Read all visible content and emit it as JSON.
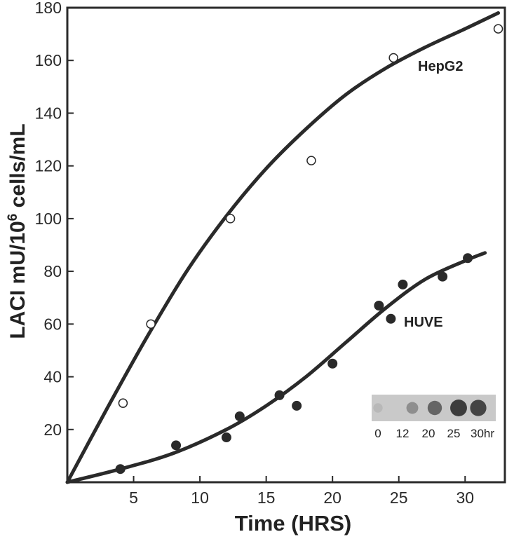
{
  "chart_data": {
    "type": "scatter",
    "title": "",
    "xlabel": "Time (HRS)",
    "ylabel_parts": {
      "pre": "LACI mU/10",
      "sup": "6",
      "post": " cells/mL"
    },
    "xlim": [
      0,
      33
    ],
    "ylim": [
      0,
      180
    ],
    "x_ticks": [
      5,
      10,
      15,
      20,
      25,
      30
    ],
    "y_ticks": [
      20,
      40,
      60,
      80,
      100,
      120,
      140,
      160,
      180
    ],
    "grid": false,
    "series": [
      {
        "name": "HepG2",
        "marker": "open-circle",
        "color": "#2a2a2a",
        "points": [
          [
            4.2,
            30
          ],
          [
            6.3,
            60
          ],
          [
            12.3,
            100
          ],
          [
            18.4,
            122
          ],
          [
            24.6,
            161
          ],
          [
            32.5,
            172
          ]
        ],
        "fit_curve": [
          [
            0,
            0
          ],
          [
            3,
            28
          ],
          [
            6,
            55
          ],
          [
            9,
            80
          ],
          [
            12,
            101
          ],
          [
            15,
            119
          ],
          [
            18,
            134
          ],
          [
            21,
            147
          ],
          [
            24,
            157
          ],
          [
            27,
            165
          ],
          [
            30,
            172
          ],
          [
            32.5,
            178
          ]
        ]
      },
      {
        "name": "HUVE",
        "marker": "filled-circle",
        "color": "#2a2a2a",
        "points": [
          [
            4,
            5
          ],
          [
            8.2,
            14
          ],
          [
            12,
            17
          ],
          [
            13,
            25
          ],
          [
            16,
            33
          ],
          [
            17.3,
            29
          ],
          [
            20,
            45
          ],
          [
            23.5,
            67
          ],
          [
            24.4,
            62
          ],
          [
            25.3,
            75
          ],
          [
            28.3,
            78
          ],
          [
            30.2,
            85
          ]
        ],
        "fit_curve": [
          [
            0,
            0
          ],
          [
            4,
            5
          ],
          [
            8,
            11
          ],
          [
            12,
            20
          ],
          [
            15,
            29
          ],
          [
            18,
            40
          ],
          [
            21,
            53
          ],
          [
            24,
            66
          ],
          [
            27,
            77
          ],
          [
            30,
            84
          ],
          [
            31.5,
            87
          ]
        ]
      }
    ],
    "inset": {
      "description_labels": [
        "0",
        "12",
        "20",
        "25",
        "30hr"
      ],
      "relative_intensity": [
        0.1,
        0.35,
        0.6,
        0.85,
        0.8
      ]
    }
  }
}
